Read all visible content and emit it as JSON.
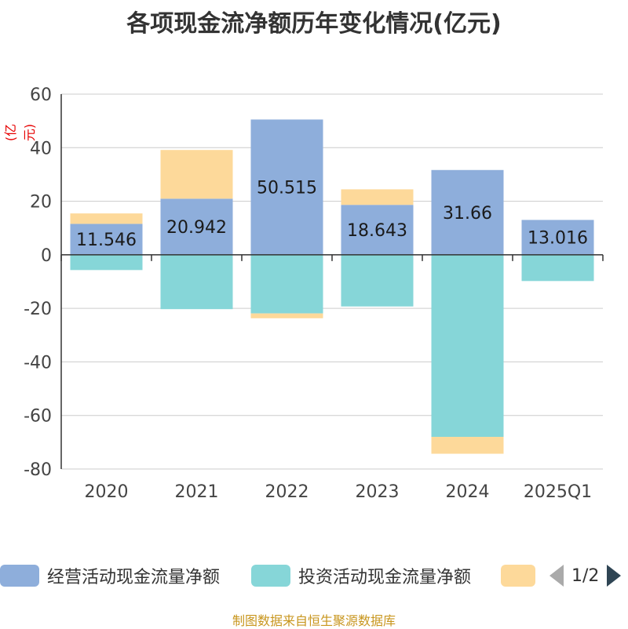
{
  "title": "各项现金流净额历年变化情况(亿元)",
  "unit_label": "(亿元)",
  "source": "制图数据来自恒生聚源数据库",
  "legend": {
    "items": [
      {
        "label": "经营活动现金流量净额",
        "color": "#8eaedb"
      },
      {
        "label": "投资活动现金流量净额",
        "color": "#86d6d8"
      },
      {
        "label": "",
        "color": "#fdd99a"
      }
    ],
    "page": "1/2"
  },
  "chart_data": {
    "type": "bar",
    "stacked": true,
    "categories": [
      "2020",
      "2021",
      "2022",
      "2023",
      "2024",
      "2025Q1"
    ],
    "ylim": [
      -80,
      60
    ],
    "yticks": [
      60,
      40,
      20,
      0,
      -20,
      -40,
      -60,
      -80
    ],
    "grid": true,
    "series": [
      {
        "name": "经营活动现金流量净额",
        "color": "#8eaedb",
        "values": [
          11.546,
          20.942,
          50.515,
          18.643,
          31.66,
          13.016
        ],
        "labels": [
          "11.546",
          "20.942",
          "50.515",
          "18.643",
          "31.66",
          "13.016"
        ]
      },
      {
        "name": "投资活动现金流量净额",
        "color": "#86d6d8",
        "values": [
          -5.7,
          -20.3,
          -21.9,
          -19.3,
          -68.0,
          -9.8
        ]
      },
      {
        "name": "",
        "color": "#fdd99a",
        "values": [
          3.9,
          18.2,
          -1.8,
          5.8,
          -6.3,
          0
        ]
      }
    ]
  }
}
